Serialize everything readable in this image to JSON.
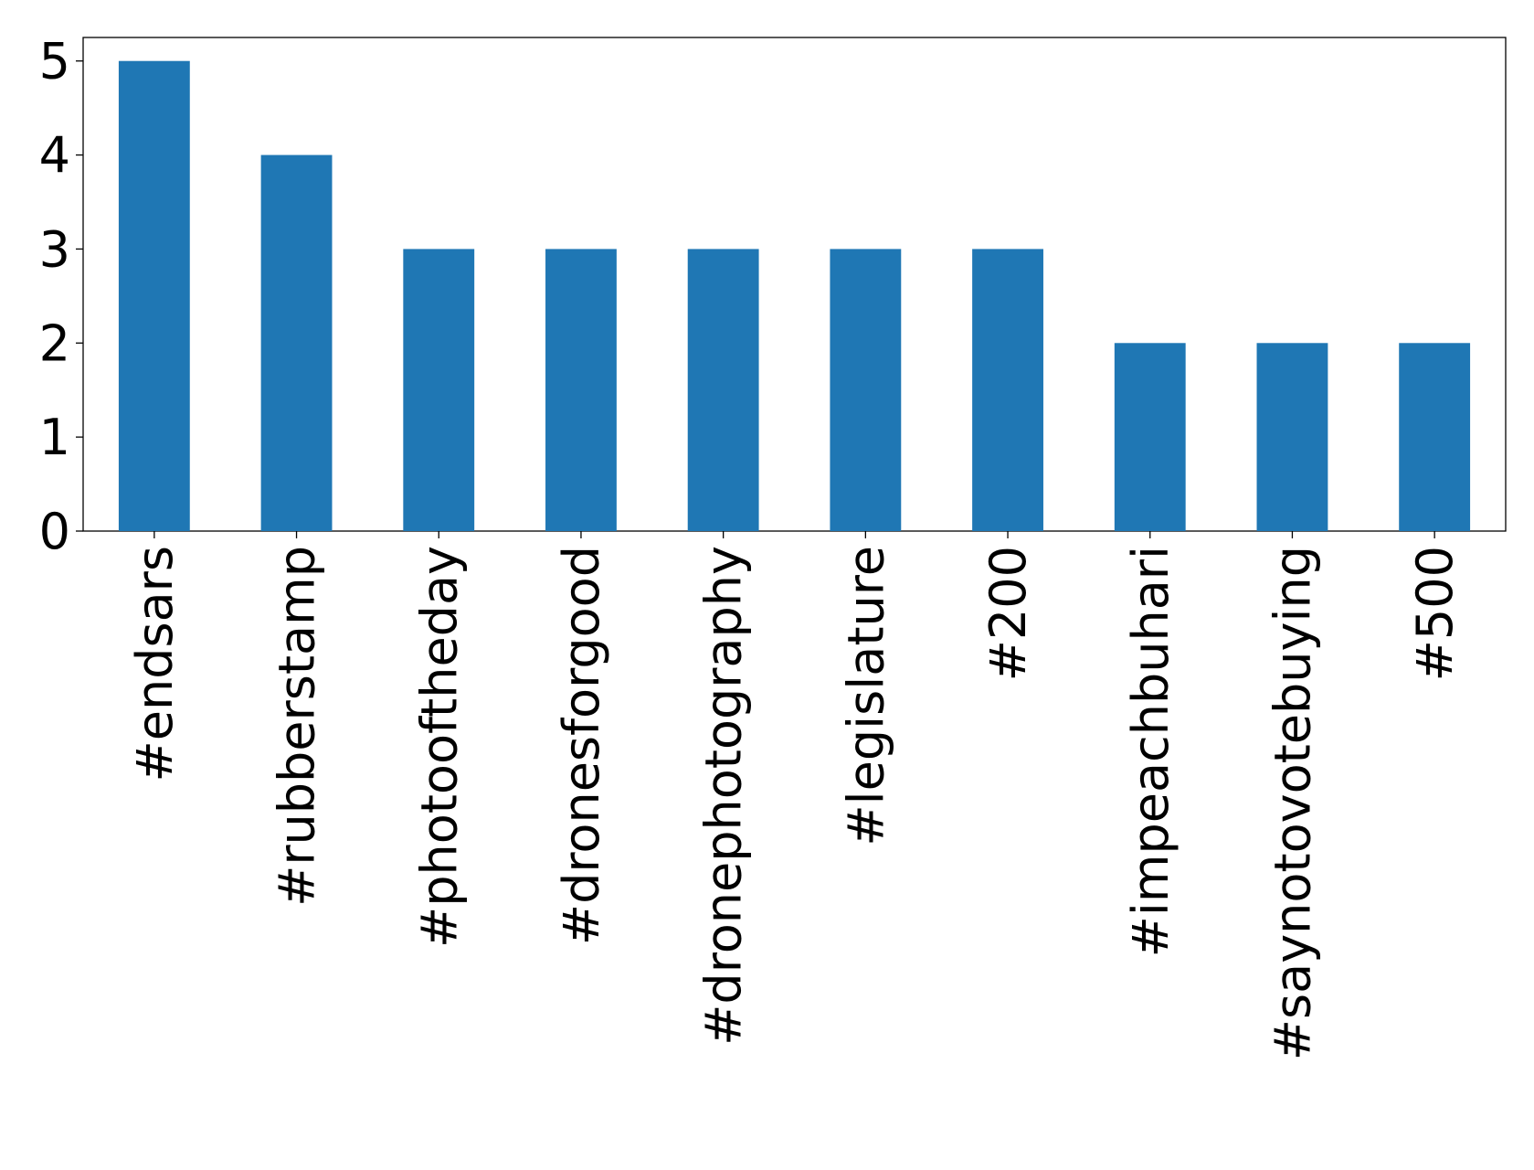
{
  "chart_data": {
    "type": "bar",
    "categories": [
      "#endsars",
      "#rubberstamp",
      "#photooftheday",
      "#dronesforgood",
      "#dronephotography",
      "#legislature",
      "#200",
      "#impeachbuhari",
      "#saynotovotebuying",
      "#500"
    ],
    "values": [
      5,
      4,
      3,
      3,
      3,
      3,
      3,
      2,
      2,
      2
    ],
    "color": "#1f77b4",
    "ylim": [
      0,
      5.25
    ],
    "yticks": [
      0,
      1,
      2,
      3,
      4,
      5
    ],
    "grid": false
  }
}
